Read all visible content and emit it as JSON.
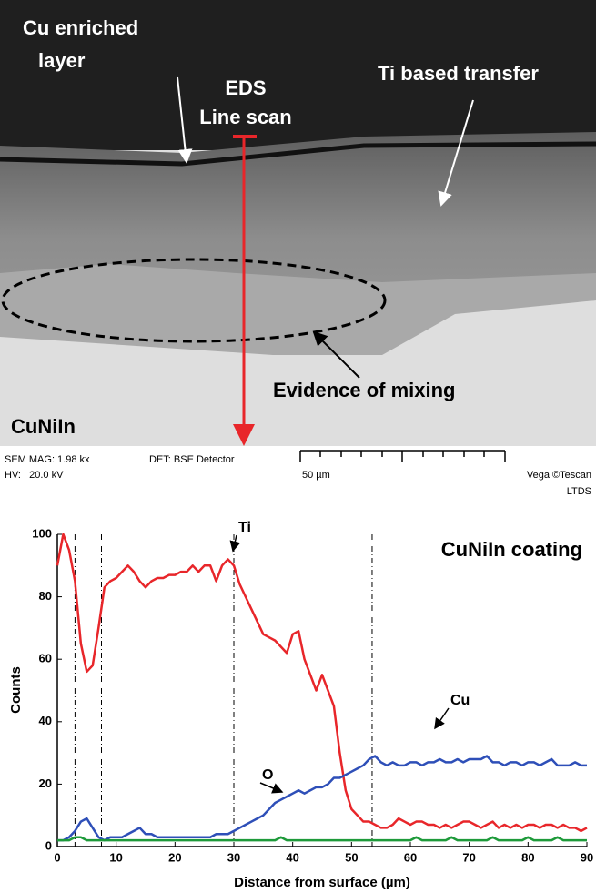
{
  "micrograph": {
    "labels": [
      "Cu enriched",
      "layer",
      "EDS",
      "Line scan",
      "Ti based transfer",
      "Evidence of mixing",
      "CuNiIn"
    ],
    "info": [
      "SEM MAG: 1.98 kx",
      "DET: BSE Detector",
      "50 µm",
      "HV:   20.0 kV",
      "Vega ©Tescan",
      "LTDS"
    ]
  },
  "chart_data": {
    "type": "line",
    "title": "CuNiIn coating",
    "x_label": "Distance from surface (µm)",
    "y_label": "Counts",
    "xlim": [
      0,
      90
    ],
    "ylim": [
      0,
      100
    ],
    "xticks": [
      0,
      10,
      20,
      30,
      40,
      50,
      60,
      70,
      80,
      90
    ],
    "yticks": [
      0,
      20,
      40,
      60,
      80,
      100
    ],
    "vlines": [
      3,
      7.5,
      30,
      53.5
    ],
    "x": [
      0,
      1,
      2,
      3,
      4,
      5,
      6,
      7,
      8,
      9,
      10,
      11,
      12,
      13,
      14,
      15,
      16,
      17,
      18,
      19,
      20,
      21,
      22,
      23,
      24,
      25,
      26,
      27,
      28,
      29,
      30,
      31,
      32,
      33,
      34,
      35,
      36,
      37,
      38,
      39,
      40,
      41,
      42,
      43,
      44,
      45,
      46,
      47,
      48,
      49,
      50,
      51,
      52,
      53,
      54,
      55,
      56,
      57,
      58,
      59,
      60,
      61,
      62,
      63,
      64,
      65,
      66,
      67,
      68,
      69,
      70,
      71,
      72,
      73,
      74,
      75,
      76,
      77,
      78,
      79,
      80,
      81,
      82,
      83,
      84,
      85,
      86,
      87,
      88,
      89,
      90
    ],
    "series": [
      {
        "name": "Ti",
        "color": "#e8262a",
        "values": [
          90,
          100,
          95,
          85,
          65,
          56,
          58,
          70,
          83,
          85,
          86,
          88,
          90,
          88,
          85,
          83,
          85,
          86,
          86,
          87,
          87,
          88,
          88,
          90,
          88,
          90,
          90,
          85,
          90,
          92,
          90,
          84,
          80,
          76,
          72,
          68,
          67,
          66,
          64,
          62,
          68,
          69,
          60,
          55,
          50,
          55,
          50,
          45,
          30,
          18,
          12,
          10,
          8,
          8,
          7,
          6,
          6,
          7,
          9,
          8,
          7,
          8,
          8,
          7,
          7,
          6,
          7,
          6,
          7,
          8,
          8,
          7,
          6,
          7,
          8,
          6,
          7,
          6,
          7,
          6,
          7,
          7,
          6,
          7,
          7,
          6,
          7,
          6,
          6,
          5,
          6
        ]
      },
      {
        "name": "Cu",
        "color": "#2e4fb8",
        "values": [
          2,
          2,
          3,
          5,
          8,
          9,
          6,
          3,
          2,
          3,
          3,
          3,
          4,
          5,
          6,
          4,
          4,
          3,
          3,
          3,
          3,
          3,
          3,
          3,
          3,
          3,
          3,
          4,
          4,
          4,
          5,
          6,
          7,
          8,
          9,
          10,
          12,
          14,
          15,
          16,
          17,
          18,
          17,
          18,
          19,
          19,
          20,
          22,
          22,
          23,
          24,
          25,
          26,
          28,
          29,
          27,
          26,
          27,
          26,
          26,
          27,
          27,
          26,
          27,
          27,
          28,
          27,
          27,
          28,
          27,
          28,
          28,
          28,
          29,
          27,
          27,
          26,
          27,
          27,
          26,
          27,
          27,
          26,
          27,
          28,
          26,
          26,
          26,
          27,
          26,
          26
        ]
      },
      {
        "name": "O",
        "color": "#1e9a3a",
        "values": [
          2,
          2,
          2,
          3,
          3,
          2,
          2,
          2,
          2,
          2,
          2,
          2,
          2,
          2,
          2,
          2,
          2,
          2,
          2,
          2,
          2,
          2,
          2,
          2,
          2,
          2,
          2,
          2,
          2,
          2,
          2,
          2,
          2,
          2,
          2,
          2,
          2,
          2,
          3,
          2,
          2,
          2,
          2,
          2,
          2,
          2,
          2,
          2,
          2,
          2,
          2,
          2,
          2,
          2,
          2,
          2,
          2,
          2,
          2,
          2,
          2,
          3,
          2,
          2,
          2,
          2,
          2,
          3,
          2,
          2,
          2,
          2,
          2,
          2,
          3,
          2,
          2,
          2,
          2,
          2,
          3,
          2,
          2,
          2,
          2,
          3,
          2,
          2,
          2,
          2,
          2
        ]
      }
    ]
  }
}
